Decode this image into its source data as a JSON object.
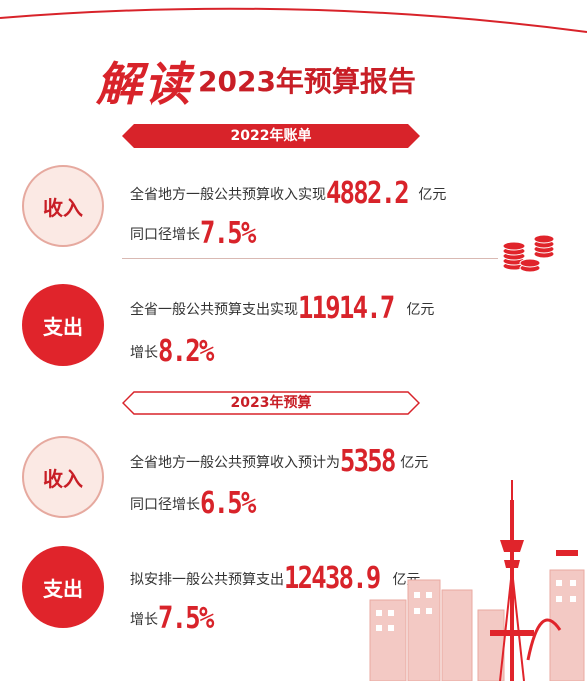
{
  "title": {
    "highlight": "解读",
    "rest": "2023年预算报告"
  },
  "section_2022": {
    "banner": "2022年账单",
    "income": {
      "badge": "收入",
      "line1_text": "全省地方一般公共预算收入实现",
      "line1_value": "4882.2",
      "line1_unit": "亿元",
      "line2_text": "同口径增长",
      "line2_value": "7.5%"
    },
    "expense": {
      "badge": "支出",
      "line1_text": "全省一般公共预算支出实现",
      "line1_value": "11914.7",
      "line1_unit": "亿元",
      "line2_text": "增长",
      "line2_value": "8.2%"
    }
  },
  "section_2023": {
    "banner": "2023年预算",
    "income": {
      "badge": "收入",
      "line1_text": "全省地方一般公共预算收入预计为",
      "line1_value": "5358",
      "line1_unit": "亿元",
      "line2_text": "同口径增长",
      "line2_value": "6.5%"
    },
    "expense": {
      "badge": "支出",
      "line1_text": "拟安排一般公共预算支出",
      "line1_value": "12438.9",
      "line1_unit": "亿元",
      "line2_text": "增长",
      "line2_value": "7.5%"
    }
  },
  "colors": {
    "accent": "#d8232a",
    "income_bg": "#fbe9e4"
  },
  "icons": [
    "coin-stack-icon",
    "city-skyline-illustration"
  ]
}
